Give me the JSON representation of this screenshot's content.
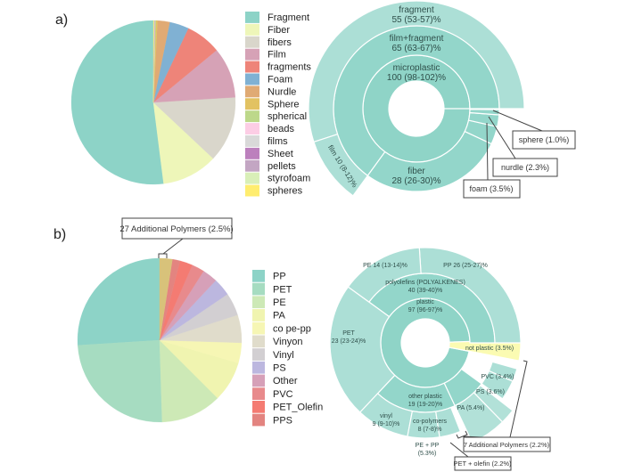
{
  "panel_labels": {
    "a": "a)",
    "b": "b)"
  },
  "chart_data": [
    {
      "type": "pie",
      "panel": "a",
      "direction": "counterclockwise-from-top",
      "series": [
        {
          "name": "Fragment",
          "value": 52,
          "color": "#8dd3c7"
        },
        {
          "name": "Fiber",
          "value": 11,
          "color": "#eef6b9"
        },
        {
          "name": "fibers",
          "value": 13,
          "color": "#d9d6cb"
        },
        {
          "name": "Film",
          "value": 10,
          "color": "#d6a2b6"
        },
        {
          "name": "fragments",
          "value": 7,
          "color": "#ee8479"
        },
        {
          "name": "Foam",
          "value": 3.8,
          "color": "#80b1d3"
        },
        {
          "name": "Nurdle",
          "value": 2.4,
          "color": "#e0aa74"
        },
        {
          "name": "Sphere",
          "value": 0.3,
          "color": "#e2c262"
        },
        {
          "name": "spherical",
          "value": 0.15,
          "color": "#bdd88a"
        },
        {
          "name": "beads",
          "value": 0.05,
          "color": "#fccde5"
        },
        {
          "name": "films",
          "value": 0.05,
          "color": "#d9d9d9"
        },
        {
          "name": "Sheet",
          "value": 0.05,
          "color": "#bc80bd"
        },
        {
          "name": "pellets",
          "value": 0.05,
          "color": "#c3a6c3"
        },
        {
          "name": "styrofoam",
          "value": 0.05,
          "color": "#d9efb8"
        },
        {
          "name": "spheres",
          "value": 0.1,
          "color": "#ffed6f"
        }
      ]
    },
    {
      "type": "sunburst",
      "panel": "a",
      "segments": [
        {
          "depth": 1,
          "start": 0,
          "value": 100,
          "label_lines": [
            "microplastic",
            "100 (98-102)%"
          ]
        },
        {
          "depth": 2,
          "start": 0,
          "value": 65,
          "label_lines": [
            "film+fragment",
            "65 (63-67)%"
          ]
        },
        {
          "depth": 2,
          "start": 65,
          "value": 28,
          "label_lines": [
            "fiber",
            "28 (26-30)%"
          ]
        },
        {
          "depth": 2,
          "start": 93,
          "value": 3.5,
          "label_lines": []
        },
        {
          "depth": 2,
          "start": 96.5,
          "value": 2.3,
          "label_lines": []
        },
        {
          "depth": 2,
          "start": 98.8,
          "value": 1.0,
          "label_lines": []
        },
        {
          "depth": 3,
          "start": 0,
          "value": 55,
          "label_lines": [
            "fragment",
            "55 (53-57)%"
          ]
        },
        {
          "depth": 3,
          "start": 55,
          "value": 10,
          "label_lines": [
            "film 10 (8-12)%"
          ]
        }
      ],
      "callouts": [
        "sphere (1.0%)",
        "nurdle (2.3%)",
        "foam (3.5%)"
      ]
    },
    {
      "type": "pie",
      "panel": "b",
      "direction": "counterclockwise-from-top",
      "series": [
        {
          "name": "PP",
          "value": 26,
          "color": "#8dd3c7"
        },
        {
          "name": "PET",
          "value": 24.5,
          "color": "#a6dcc1"
        },
        {
          "name": "PE",
          "value": 12,
          "color": "#cde9b6"
        },
        {
          "name": "PA",
          "value": 8,
          "color": "#f0f4b0"
        },
        {
          "name": "co pe-pp",
          "value": 4,
          "color": "#f6f6b4"
        },
        {
          "name": "Vinyon",
          "value": 5.5,
          "color": "#e0dccb"
        },
        {
          "name": "Vinyl",
          "value": 4.5,
          "color": "#d2cfd2"
        },
        {
          "name": "PS",
          "value": 3.5,
          "color": "#bcb7df"
        },
        {
          "name": "Other",
          "value": 3,
          "color": "#d6a0b8"
        },
        {
          "name": "PVC",
          "value": 2.5,
          "color": "#e88a8c"
        },
        {
          "name": "PET_Olefin",
          "value": 2.5,
          "color": "#f47b72"
        },
        {
          "name": "PPS",
          "value": 1.5,
          "color": "#e38480"
        },
        {
          "value": 2.5,
          "color": "#d8c27a",
          "callout": "27 Additional Polymers (2.5%)"
        }
      ]
    },
    {
      "type": "sunburst",
      "panel": "b",
      "segments": [
        {
          "depth": 1,
          "start": 0,
          "value": 97,
          "label_lines": [
            "plastic",
            "97 (96-97)%"
          ]
        },
        {
          "depth": 1,
          "start": 97,
          "value": 3.5,
          "span": 3,
          "color": "#fbfbb2",
          "label_lines": [
            "not plastic (3.5%)"
          ]
        },
        {
          "depth": 2,
          "start": 0,
          "value": 40,
          "label_lines": [
            "polyolefins (POLYALKENES)",
            "40 (39-40)%"
          ]
        },
        {
          "depth": 2,
          "start": 40,
          "value": 23,
          "span": 2,
          "label_lines": [
            "PET",
            "23 (23-24)%"
          ]
        },
        {
          "depth": 2,
          "start": 63,
          "value": 19,
          "label_lines": [
            "other plastic",
            "19 (19-20)%"
          ]
        },
        {
          "depth": 2,
          "start": 82,
          "value": 8,
          "label_lines": [
            "co-polymers",
            "8 (7-8)%"
          ]
        },
        {
          "depth": 3,
          "start": 0,
          "value": 26,
          "label_lines": [
            "PP 26 (25-27)%"
          ]
        },
        {
          "depth": 3,
          "start": 26,
          "value": 14,
          "label_lines": [
            "PE 14 (13-14)%"
          ]
        },
        {
          "depth": 3,
          "start": 63,
          "value": 9,
          "label_lines": [
            "vinyl",
            "9 (9-10)%"
          ]
        },
        {
          "depth": 3,
          "start": 72,
          "value": 5.4,
          "label_lines": [
            "PA (5.4%)"
          ]
        },
        {
          "depth": 3,
          "start": 77.4,
          "value": 3.6,
          "label_lines": [
            "PS (3.6%)"
          ]
        },
        {
          "depth": 3,
          "start": 82,
          "value": 5.3,
          "span": 2,
          "label_lines": [
            "PE + PP",
            "(5.3%)"
          ]
        },
        {
          "depth": 3,
          "start": 87.3,
          "value": 2.2,
          "span": 2,
          "label_lines": []
        },
        {
          "depth": 3,
          "start": 90,
          "value": 3.4,
          "label_lines": [
            "PVC (3.4%)"
          ]
        },
        {
          "depth": 3,
          "start": 93.4,
          "value": 2.2,
          "label_lines": []
        }
      ],
      "callouts": [
        "7 Additional Polymers (2.2%)",
        "PET + olefin (2.2%)"
      ]
    }
  ],
  "colors": {
    "ring1": "#8fd4c7",
    "ring2": "#93d6ca",
    "ring3": "#acdfd6",
    "ring4": "#b2e1d8"
  }
}
